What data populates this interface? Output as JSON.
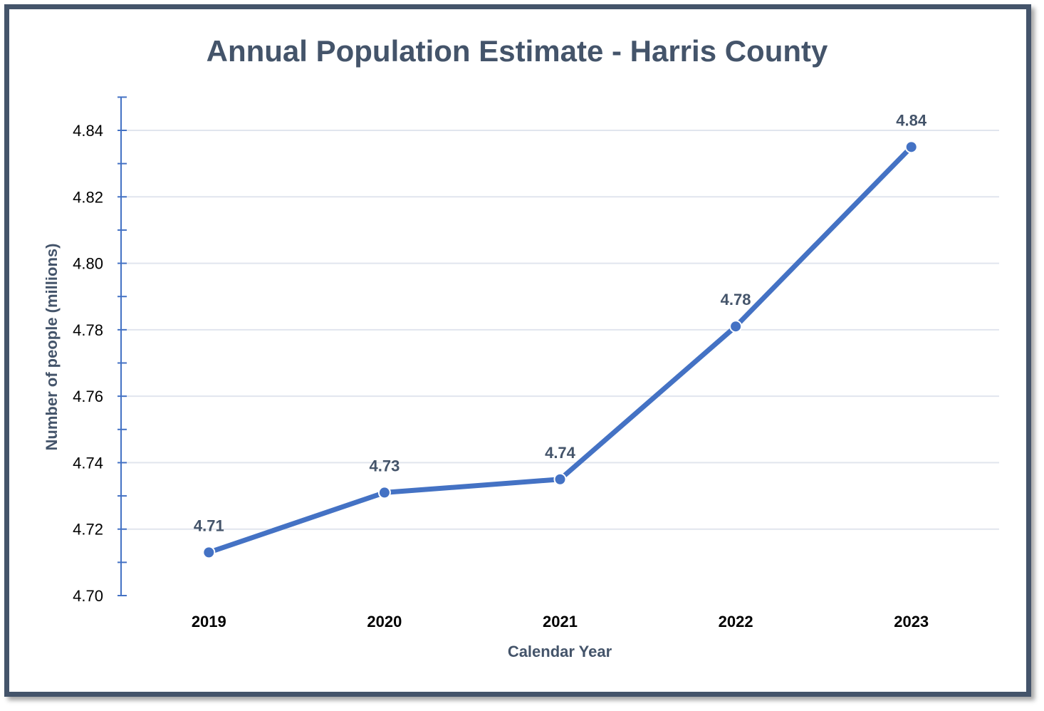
{
  "chart_data": {
    "type": "line",
    "title": "Annual Population Estimate - Harris County",
    "xlabel": "Calendar Year",
    "ylabel": "Number of people (millions)",
    "categories": [
      "2019",
      "2020",
      "2021",
      "2022",
      "2023"
    ],
    "values": [
      4.713,
      4.731,
      4.735,
      4.781,
      4.835
    ],
    "data_labels": [
      "4.71",
      "4.73",
      "4.74",
      "4.78",
      "4.84"
    ],
    "ylim": [
      4.7,
      4.85
    ],
    "yticks": [
      "4.70",
      "4.72",
      "4.74",
      "4.76",
      "4.78",
      "4.80",
      "4.82",
      "4.84"
    ],
    "grid": true,
    "legend": "none",
    "colors": {
      "line": "#4472c4",
      "frame": "#44546a",
      "grid": "#e1e5ee",
      "text": "#44546a"
    }
  }
}
